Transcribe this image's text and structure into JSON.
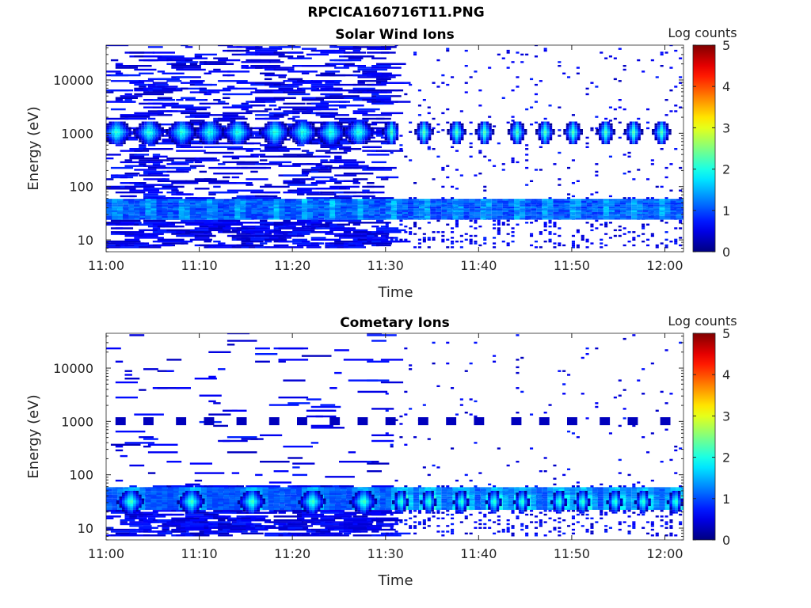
{
  "figure": {
    "title": "RPCICA160716T11.PNG"
  },
  "chart_data": [
    {
      "type": "heatmap",
      "title": "Solar Wind Ions",
      "xlabel": "Time",
      "ylabel": "Energy (eV)",
      "x_ticks": [
        "11:00",
        "11:10",
        "11:20",
        "11:30",
        "11:40",
        "11:50",
        "12:00"
      ],
      "x_range_minutes": [
        0,
        62
      ],
      "y_scale": "log",
      "y_ticks": [
        10,
        100,
        1000,
        10000
      ],
      "y_range": [
        6,
        45000
      ],
      "colorbar": {
        "label": "Log counts",
        "ticks": [
          0,
          1,
          2,
          3,
          4,
          5
        ],
        "range": [
          0,
          5
        ],
        "colormap": "jet"
      },
      "features": {
        "peak_energy_eV": 1000,
        "peak_bursts_minutes": [
          1,
          4.5,
          8,
          11,
          14,
          18,
          21,
          24,
          27,
          30.5,
          34,
          37.5,
          40.5,
          44,
          47,
          50,
          53.5,
          56.5,
          59.5
        ],
        "peak_log_counts": 2.0,
        "low_energy_band_eV": [
          25,
          55
        ],
        "low_energy_log_counts": 1.0
      }
    },
    {
      "type": "heatmap",
      "title": "Cometary Ions",
      "xlabel": "Time",
      "ylabel": "Energy (eV)",
      "x_ticks": [
        "11:00",
        "11:10",
        "11:20",
        "11:30",
        "11:40",
        "11:50",
        "12:00"
      ],
      "x_range_minutes": [
        0,
        62
      ],
      "y_scale": "log",
      "y_ticks": [
        10,
        100,
        1000,
        10000
      ],
      "y_range": [
        6,
        45000
      ],
      "colorbar": {
        "label": "Log counts",
        "ticks": [
          0,
          1,
          2,
          3,
          4,
          5
        ],
        "range": [
          0,
          5
        ],
        "colormap": "jet"
      },
      "features": {
        "peak_energy_eV": 30,
        "peak_bursts_minutes": [
          2.5,
          9,
          15.5,
          22,
          27.5,
          31.5,
          34.5,
          38,
          41.5,
          44.5,
          48.5,
          51,
          54.5,
          57.5,
          61
        ],
        "peak_log_counts": 2.2,
        "band_1000eV_log_counts": 0.3
      }
    }
  ]
}
